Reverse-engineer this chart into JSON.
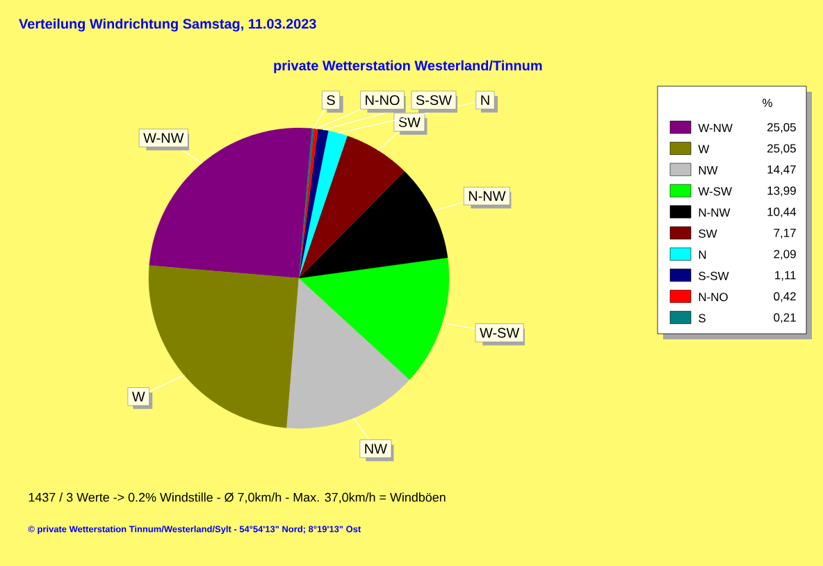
{
  "chart_data": {
    "type": "pie",
    "title": "Verteilung Windrichtung   Samstag, 11.03.2023",
    "subtitle": "private Wetterstation Westerland/Tinnum",
    "categories": [
      "W-NW",
      "W",
      "NW",
      "W-SW",
      "N-NW",
      "SW",
      "N",
      "S-SW",
      "N-NO",
      "S"
    ],
    "values": [
      25.05,
      25.05,
      14.47,
      13.99,
      10.44,
      7.17,
      2.09,
      1.11,
      0.42,
      0.21
    ],
    "value_labels": [
      "25,05",
      "25,05",
      "14,47",
      "13,99",
      "10,44",
      "7,17",
      "2,09",
      "1,11",
      "0,42",
      "0,21"
    ],
    "colors": [
      "#800080",
      "#808000",
      "#c0c0c0",
      "#00ff00",
      "#000000",
      "#800000",
      "#00ffff",
      "#000080",
      "#ff0000",
      "#008080"
    ],
    "legend": "right",
    "legend_title": "%",
    "annotations": [
      "1437 / 3 Werte  -> 0.2% Windstille   -   Ø 7,0km/h  -  Max. 37,0km/h = Windböen",
      "© private Wetterstation Tinnum/Westerland/Sylt   -   54°54'13\" Nord; 8°19'13\" Ost"
    ]
  }
}
